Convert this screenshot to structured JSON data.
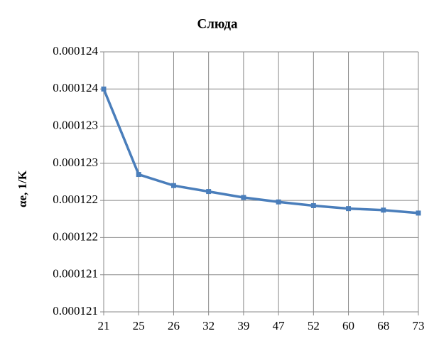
{
  "chart_data": {
    "type": "line",
    "title": "Слюда",
    "y_label": "αе, 1/K",
    "categories": [
      "21",
      "25",
      "26",
      "32",
      "39",
      "47",
      "52",
      "60",
      "68",
      "73"
    ],
    "series": [
      {
        "name": "Слюда",
        "color": "#4a7ebb",
        "values": [
          0.0001235,
          0.00012235,
          0.0001222,
          0.00012212,
          0.00012204,
          0.00012198,
          0.00012193,
          0.00012189,
          0.00012187,
          0.00012183
        ]
      }
    ],
    "ylim": [
      0.0001205,
      0.000124
    ],
    "yticks": [
      {
        "value": 0.0001205,
        "label": "0.000121"
      },
      {
        "value": 0.000121,
        "label": "0.000121"
      },
      {
        "value": 0.0001215,
        "label": "0.000122"
      },
      {
        "value": 0.000122,
        "label": "0.000122"
      },
      {
        "value": 0.0001225,
        "label": "0.000123"
      },
      {
        "value": 0.000123,
        "label": "0.000123"
      },
      {
        "value": 0.0001235,
        "label": "0.000124"
      },
      {
        "value": 0.000124,
        "label": "0.000124"
      }
    ],
    "grid": true
  }
}
